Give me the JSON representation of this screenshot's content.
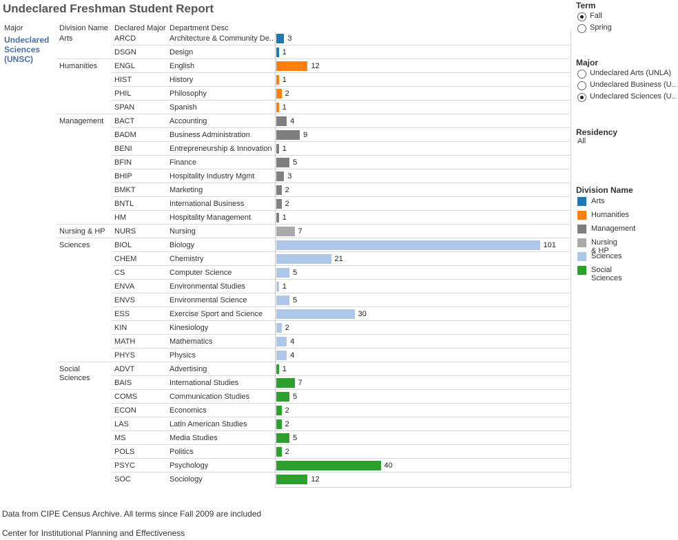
{
  "title": "Undeclared Freshman Student Report",
  "headers": {
    "major": "Major",
    "division": "Division Name",
    "declared": "Declared Major",
    "dept": "Department Desc"
  },
  "major_label": "Undeclared Sciences (UNSC)",
  "filters": {
    "term": {
      "title": "Term",
      "options": [
        {
          "label": "Fall",
          "selected": true
        },
        {
          "label": "Spring",
          "selected": false
        }
      ]
    },
    "major": {
      "title": "Major",
      "options": [
        {
          "label": "Undeclared Arts (UNLA)",
          "selected": false
        },
        {
          "label": "Undeclared Business (U..",
          "selected": false
        },
        {
          "label": "Undeclared Sciences (U..",
          "selected": true
        }
      ]
    },
    "residency": {
      "title": "Residency",
      "value": "All"
    }
  },
  "legend": {
    "title": "Division Name",
    "items": [
      {
        "label": "Arts",
        "color": "#1f77b4"
      },
      {
        "label": "Humanities",
        "color": "#ff7f0e"
      },
      {
        "label": "Management",
        "color": "#7f7f7f"
      },
      {
        "label": "Nursing & HP",
        "color": "#aaaaaa"
      },
      {
        "label": "Sciences",
        "color": "#aec7e8"
      },
      {
        "label": "Social Sciences",
        "color": "#2ca02c"
      }
    ]
  },
  "footer": {
    "line1": "Data from CIPE Census Archive. All terms since Fall 2009 are included",
    "line2": "Center for Institutional Planning and Effectiveness"
  },
  "chart_data": {
    "type": "bar",
    "orientation": "horizontal",
    "title": "Undeclared Freshman Student Report",
    "xlim": [
      0,
      113
    ],
    "divisions": [
      {
        "name": "Arts",
        "color": "#1f77b4",
        "rows": [
          {
            "code": "ARCD",
            "desc": "Architecture & Community De..",
            "value": 3
          },
          {
            "code": "DSGN",
            "desc": "Design",
            "value": 1
          }
        ]
      },
      {
        "name": "Humanities",
        "color": "#ff7f0e",
        "rows": [
          {
            "code": "ENGL",
            "desc": "English",
            "value": 12
          },
          {
            "code": "HIST",
            "desc": "History",
            "value": 1
          },
          {
            "code": "PHIL",
            "desc": "Philosophy",
            "value": 2
          },
          {
            "code": "SPAN",
            "desc": "Spanish",
            "value": 1
          }
        ]
      },
      {
        "name": "Management",
        "color": "#7f7f7f",
        "rows": [
          {
            "code": "BACT",
            "desc": "Accounting",
            "value": 4
          },
          {
            "code": "BADM",
            "desc": "Business Administration",
            "value": 9
          },
          {
            "code": "BENI",
            "desc": "Entrepreneurship & Innovation",
            "value": 1
          },
          {
            "code": "BFIN",
            "desc": "Finance",
            "value": 5
          },
          {
            "code": "BHIP",
            "desc": "Hospitality Industry Mgmt",
            "value": 3
          },
          {
            "code": "BMKT",
            "desc": "Marketing",
            "value": 2
          },
          {
            "code": "BNTL",
            "desc": "International Business",
            "value": 2
          },
          {
            "code": "HM",
            "desc": "Hospitality Management",
            "value": 1
          }
        ]
      },
      {
        "name": "Nursing & HP",
        "color": "#aaaaaa",
        "rows": [
          {
            "code": "NURS",
            "desc": "Nursing",
            "value": 7
          }
        ]
      },
      {
        "name": "Sciences",
        "color": "#aec7e8",
        "rows": [
          {
            "code": "BIOL",
            "desc": "Biology",
            "value": 101
          },
          {
            "code": "CHEM",
            "desc": "Chemistry",
            "value": 21
          },
          {
            "code": "CS",
            "desc": "Computer Science",
            "value": 5
          },
          {
            "code": "ENVA",
            "desc": "Environmental Studies",
            "value": 1
          },
          {
            "code": "ENVS",
            "desc": "Environmental Science",
            "value": 5
          },
          {
            "code": "ESS",
            "desc": "Exercise Sport and Science",
            "value": 30
          },
          {
            "code": "KIN",
            "desc": "Kinesiology",
            "value": 2
          },
          {
            "code": "MATH",
            "desc": "Mathematics",
            "value": 4
          },
          {
            "code": "PHYS",
            "desc": "Physics",
            "value": 4
          }
        ]
      },
      {
        "name": "Social Sciences",
        "color": "#2ca02c",
        "rows": [
          {
            "code": "ADVT",
            "desc": "Advertising",
            "value": 1
          },
          {
            "code": "BAIS",
            "desc": "International Studies",
            "value": 7
          },
          {
            "code": "COMS",
            "desc": "Communication Studies",
            "value": 5
          },
          {
            "code": "ECON",
            "desc": "Economics",
            "value": 2
          },
          {
            "code": "LAS",
            "desc": "Latin American Studies",
            "value": 2
          },
          {
            "code": "MS",
            "desc": "Media Studies",
            "value": 5
          },
          {
            "code": "POLS",
            "desc": "Politics",
            "value": 2
          },
          {
            "code": "PSYC",
            "desc": "Psychology",
            "value": 40
          },
          {
            "code": "SOC",
            "desc": "Sociology",
            "value": 12
          }
        ]
      }
    ]
  }
}
